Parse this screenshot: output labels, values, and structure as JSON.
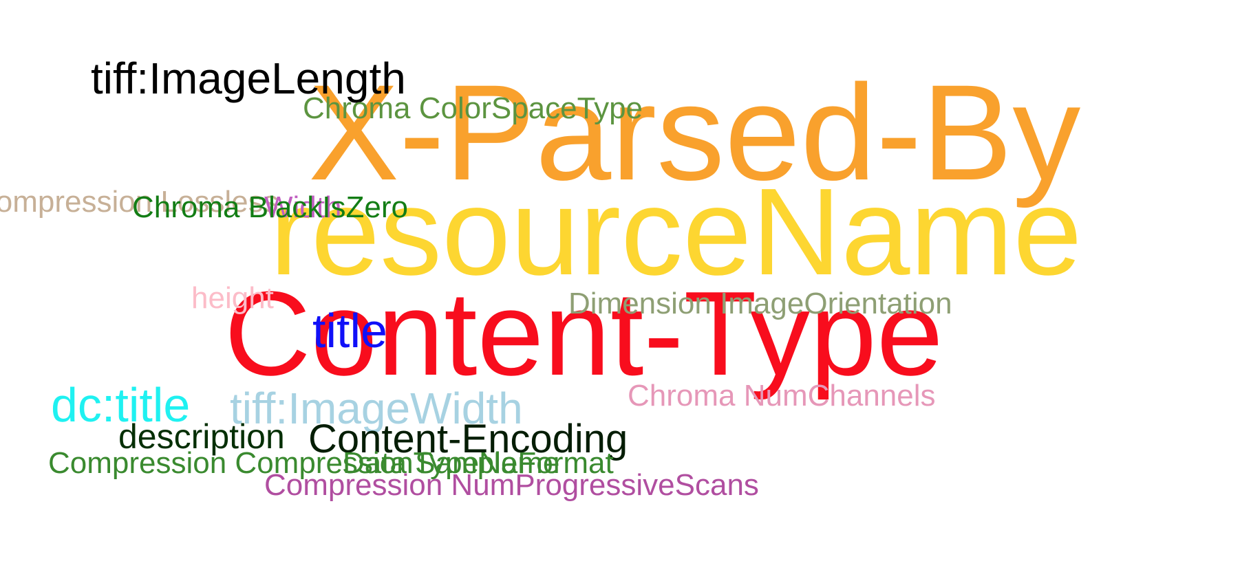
{
  "words": [
    {
      "key": "x_parsed_by",
      "text": "X-Parsed-By",
      "color": "#f9a12d"
    },
    {
      "key": "resourcename",
      "text": "resourceName",
      "color": "#fdd631"
    },
    {
      "key": "content_type",
      "text": "Content-Type",
      "color": "#f80d1d"
    },
    {
      "key": "tiff_imagelength",
      "text": "tiff:ImageLength",
      "color": "#000000"
    },
    {
      "key": "chroma_colorspacetype",
      "text": "Chroma ColorSpaceType",
      "color": "#5c9440"
    },
    {
      "key": "compression_lossless",
      "text": "Compression Lossless",
      "color": "#c7b097"
    },
    {
      "key": "width",
      "text": "Width",
      "color": "#c05fc0"
    },
    {
      "key": "chroma_blackiszero",
      "text": "Chroma BlackIsZero",
      "color": "#137d15"
    },
    {
      "key": "height",
      "text": "height",
      "color": "#fcbcc8"
    },
    {
      "key": "dimension_imageorientation",
      "text": "Dimension ImageOrientation",
      "color": "#8e9f74"
    },
    {
      "key": "title",
      "text": "title",
      "color": "#1010f8"
    },
    {
      "key": "dc_title",
      "text": "dc:title",
      "color": "#1ff1f1"
    },
    {
      "key": "tiff_imagewidth",
      "text": "tiff:ImageWidth",
      "color": "#a7d2e2"
    },
    {
      "key": "chroma_numchannels",
      "text": "Chroma NumChannels",
      "color": "#e697b8"
    },
    {
      "key": "description",
      "text": "description",
      "color": "#052f05"
    },
    {
      "key": "content_encoding",
      "text": "Content-Encoding",
      "color": "#051d05"
    },
    {
      "key": "compression_compressiontypename",
      "text": "Compression CompressionTypeName",
      "color": "#3a8a2f"
    },
    {
      "key": "data_sampleformat",
      "text": "Data SampleFormat",
      "color": "#3a8a2f"
    },
    {
      "key": "compression_numprogressivescans",
      "text": "Compression NumProgressiveScans",
      "color": "#b04ea0"
    }
  ]
}
